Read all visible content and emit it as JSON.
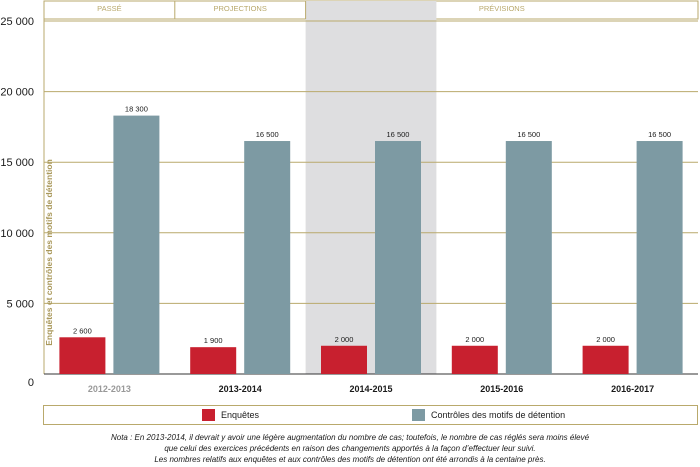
{
  "chart_data": {
    "type": "bar",
    "ylabel": "Enquêtes et contrôles des motifs de détention",
    "ylim": [
      0,
      25000
    ],
    "yticks": [
      0,
      5000,
      10000,
      15000,
      20000,
      25000
    ],
    "ytick_labels": [
      "0",
      "5 000",
      "10 000",
      "15 000",
      "20 000",
      "25 000"
    ],
    "categories": [
      "2012-2013",
      "2013-2014",
      "2014-2015",
      "2015-2016",
      "2016-2017"
    ],
    "category_styles": [
      "muted",
      "bold",
      "bold",
      "bold",
      "bold"
    ],
    "series": [
      {
        "name": "Enquêtes",
        "color": "#c8202f",
        "values": [
          2600,
          1900,
          2000,
          2000,
          2000
        ],
        "labels": [
          "2 600",
          "1 900",
          "2 000",
          "2 000",
          "2 000"
        ]
      },
      {
        "name": "Contrôles des motifs de détention",
        "color": "#7d9aa3",
        "values": [
          18300,
          16500,
          16500,
          16500,
          16500
        ],
        "labels": [
          "18 300",
          "16 500",
          "16 500",
          "16 500",
          "16 500"
        ]
      }
    ],
    "periods": [
      {
        "label": "PASSÉ",
        "from": 0,
        "to": 0
      },
      {
        "label": "PROJECTIONS",
        "from": 1,
        "to": 1
      },
      {
        "label": "PRÉVISIONS",
        "from": 2,
        "to": 4
      }
    ],
    "highlight_category": 2,
    "grid": true,
    "legend_position": "bottom"
  },
  "legend": {
    "items": [
      {
        "label": "Enquêtes",
        "color": "#c8202f"
      },
      {
        "label": "Contrôles des motifs de détention",
        "color": "#7d9aa3"
      }
    ]
  },
  "note": {
    "line1": "Nota : En 2013-2014, il devrait y avoir une légère augmentation du nombre de cas; toutefois, le nombre de cas réglés sera moins élevé",
    "line2": "que celui des exercices précédents en raison des changements apportés à la façon d’effectuer leur suivi.",
    "line3": "Les nombres relatifs aux enquêtes et aux contrôles des motifs de détention ont été arrondis à la centaine près."
  },
  "colors": {
    "grid": "#b9a96c",
    "highlight": "#dedee0",
    "muted_text": "#999999"
  }
}
